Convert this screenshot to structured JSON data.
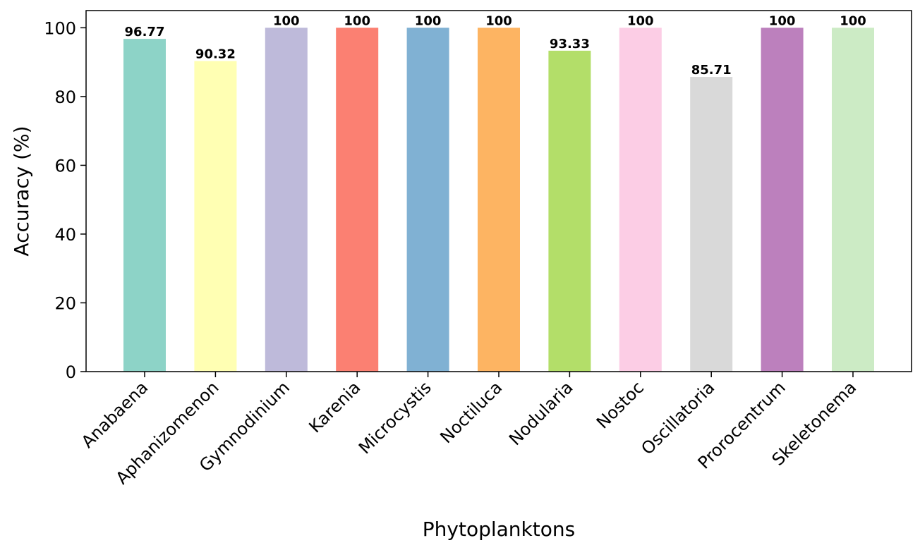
{
  "chart_data": {
    "type": "bar",
    "xlabel": "Phytoplanktons",
    "ylabel": "Accuracy (%)",
    "ylim": [
      0,
      105
    ],
    "yticks": [
      0,
      20,
      40,
      60,
      80,
      100
    ],
    "grid": false,
    "categories": [
      "Anabaena",
      "Aphanizomenon",
      "Gymnodinium",
      "Karenia",
      "Microcystis",
      "Noctiluca",
      "Nodularia",
      "Nostoc",
      "Oscillatoria",
      "Prorocentrum",
      "Skeletonema"
    ],
    "values": [
      96.77,
      90.32,
      100,
      100,
      100,
      100,
      93.33,
      100,
      85.71,
      100,
      100
    ],
    "value_labels": [
      "96.77",
      "90.32",
      "100",
      "100",
      "100",
      "100",
      "93.33",
      "100",
      "85.71",
      "100",
      "100"
    ],
    "colors": [
      "#8dd3c7",
      "#ffffb3",
      "#bebada",
      "#fb8072",
      "#80b1d3",
      "#fdb462",
      "#b3de69",
      "#fccde5",
      "#d9d9d9",
      "#bc80bd",
      "#ccebc5"
    ]
  }
}
